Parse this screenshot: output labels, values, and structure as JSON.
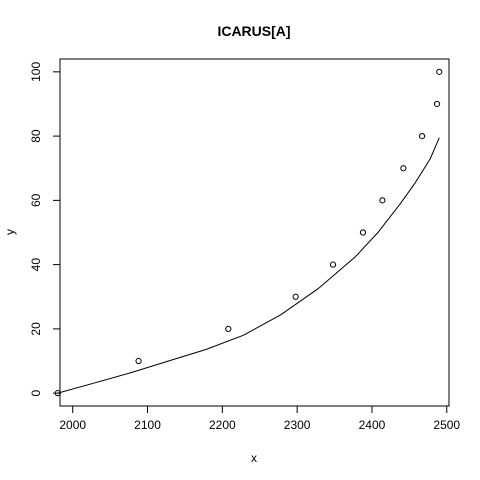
{
  "chart_data": {
    "type": "scatter",
    "title": "ICARUS[A]",
    "xlabel": "x",
    "ylabel": "y",
    "xlim": [
      1983,
      2503
    ],
    "ylim": [
      -4,
      104
    ],
    "xticks": [
      2000,
      2100,
      2200,
      2300,
      2400,
      2500
    ],
    "yticks": [
      0,
      20,
      40,
      60,
      80,
      100
    ],
    "xtick_labels": [
      "2000",
      "2100",
      "2200",
      "2300",
      "2400",
      "2500"
    ],
    "ytick_labels": [
      "0",
      "20",
      "40",
      "60",
      "80",
      "100"
    ],
    "grid": false,
    "legend": "none",
    "series": [
      {
        "type": "scatter",
        "marker": "open-circle",
        "x": [
          1980,
          2088,
          2208,
          2298,
          2348,
          2388,
          2414,
          2442,
          2467,
          2487,
          2490
        ],
        "y": [
          0,
          10,
          20,
          30,
          40,
          50,
          60,
          70,
          80,
          90,
          100
        ]
      },
      {
        "type": "line",
        "x": [
          1980,
          2028,
          2078,
          2128,
          2178,
          2228,
          2278,
          2328,
          2378,
          2408,
          2438,
          2458,
          2478,
          2490
        ],
        "y": [
          0,
          3.1,
          6.4,
          10,
          13.6,
          18,
          24.4,
          32.5,
          42.5,
          50,
          59,
          65.5,
          73,
          79.5
        ]
      }
    ],
    "colors": {
      "points": "#000000",
      "line": "#000000",
      "axes": "#000000",
      "background": "#ffffff"
    }
  }
}
